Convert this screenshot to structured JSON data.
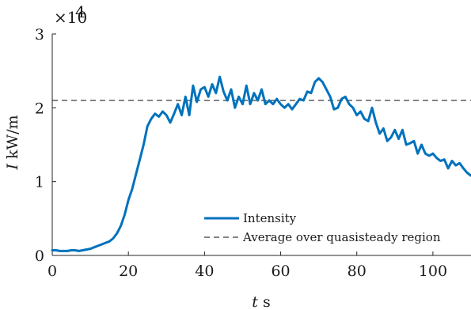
{
  "chart_data": {
    "type": "line",
    "title": "",
    "xlabel_var": "t",
    "xlabel_unit": "s",
    "ylabel_var": "I",
    "ylabel_unit": "kW/m",
    "y_scale_base": "×10",
    "y_scale_exponent": "4",
    "xlim": [
      0,
      110
    ],
    "ylim": [
      0,
      3
    ],
    "xticks": [
      "0",
      "20",
      "40",
      "60",
      "80",
      "100"
    ],
    "yticks": [
      "0",
      "1",
      "2",
      "3"
    ],
    "grid": false,
    "legend_position": "bottom-right",
    "series": [
      {
        "name": "Intensity",
        "color": "#0072bd",
        "style": "solid",
        "x": [
          0,
          1,
          2,
          3,
          4,
          5,
          6,
          7,
          8,
          9,
          10,
          11,
          12,
          13,
          14,
          15,
          16,
          17,
          18,
          19,
          20,
          21,
          22,
          23,
          24,
          25,
          26,
          27,
          28,
          29,
          30,
          31,
          32,
          33,
          34,
          35,
          36,
          37,
          38,
          39,
          40,
          41,
          42,
          43,
          44,
          45,
          46,
          47,
          48,
          49,
          50,
          51,
          52,
          53,
          54,
          55,
          56,
          57,
          58,
          59,
          60,
          61,
          62,
          63,
          64,
          65,
          66,
          67,
          68,
          69,
          70,
          71,
          72,
          73,
          74,
          75,
          76,
          77,
          78,
          79,
          80,
          81,
          82,
          83,
          84,
          85,
          86,
          87,
          88,
          89,
          90,
          91,
          92,
          93,
          94,
          95,
          96,
          97,
          98,
          99,
          100,
          101,
          102,
          103,
          104,
          105,
          106,
          107,
          108,
          109,
          110
        ],
        "y": [
          0.07,
          0.07,
          0.06,
          0.06,
          0.06,
          0.07,
          0.07,
          0.06,
          0.07,
          0.08,
          0.09,
          0.11,
          0.13,
          0.15,
          0.17,
          0.19,
          0.23,
          0.3,
          0.4,
          0.55,
          0.75,
          0.9,
          1.1,
          1.3,
          1.5,
          1.75,
          1.85,
          1.92,
          1.88,
          1.95,
          1.9,
          1.8,
          1.92,
          2.05,
          1.9,
          2.15,
          1.9,
          2.3,
          2.08,
          2.25,
          2.28,
          2.15,
          2.32,
          2.2,
          2.42,
          2.22,
          2.1,
          2.25,
          2.0,
          2.15,
          2.05,
          2.3,
          2.05,
          2.2,
          2.1,
          2.25,
          2.05,
          2.1,
          2.05,
          2.12,
          2.05,
          2.0,
          2.05,
          1.98,
          2.05,
          2.12,
          2.1,
          2.22,
          2.2,
          2.35,
          2.4,
          2.35,
          2.25,
          2.15,
          1.98,
          2.0,
          2.12,
          2.15,
          2.05,
          2.0,
          1.9,
          1.95,
          1.85,
          1.82,
          2.0,
          1.8,
          1.65,
          1.72,
          1.55,
          1.6,
          1.7,
          1.58,
          1.7,
          1.5,
          1.52,
          1.55,
          1.38,
          1.5,
          1.38,
          1.35,
          1.38,
          1.32,
          1.28,
          1.3,
          1.18,
          1.28,
          1.22,
          1.25,
          1.18,
          1.12,
          1.08
        ]
      },
      {
        "name": "Average over quasisteady region",
        "color": "#3a3a3a",
        "style": "dashed",
        "constant": 2.1
      }
    ]
  }
}
